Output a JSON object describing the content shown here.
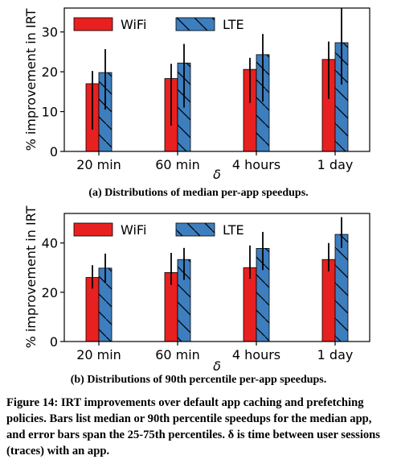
{
  "chart_data": [
    {
      "type": "bar",
      "categories": [
        "20 min",
        "60 min",
        "4 hours",
        "1 day"
      ],
      "xlabel": "δ",
      "ylabel": "% improvement in IRT",
      "ylim": [
        0,
        36
      ],
      "yticks": [
        0,
        10,
        20,
        30
      ],
      "grid": false,
      "legend_position": "top",
      "series": [
        {
          "name": "WiFi",
          "color": "#e8201f",
          "hatch": "none",
          "values": [
            17,
            18.3,
            20.6,
            23.1
          ],
          "error_low": [
            5.5,
            6.5,
            12.2,
            13.2
          ],
          "error_high": [
            20.2,
            22,
            23.5,
            27.6
          ]
        },
        {
          "name": "LTE",
          "color": "#3d7ebe",
          "hatch": "diagonal",
          "values": [
            19.8,
            22.2,
            24.3,
            27.3
          ],
          "error_low": [
            10.5,
            11,
            12.5,
            16.8
          ],
          "error_high": [
            25.7,
            27,
            29.5,
            36
          ]
        }
      ],
      "subcaption": "(a) Distributions of median per-app speedups."
    },
    {
      "type": "bar",
      "categories": [
        "20 min",
        "60 min",
        "4 hours",
        "1 day"
      ],
      "xlabel": "δ",
      "ylabel": "% improvement in IRT",
      "ylim": [
        0,
        52
      ],
      "yticks": [
        0,
        20,
        40
      ],
      "grid": false,
      "legend_position": "top",
      "series": [
        {
          "name": "WiFi",
          "color": "#e8201f",
          "hatch": "none",
          "values": [
            26,
            28,
            30,
            33.3
          ],
          "error_low": [
            21.5,
            23,
            25.5,
            28.5
          ],
          "error_high": [
            31,
            36,
            39,
            40
          ]
        },
        {
          "name": "LTE",
          "color": "#3d7ebe",
          "hatch": "diagonal",
          "values": [
            29.8,
            33.3,
            37.8,
            43.5
          ],
          "error_low": [
            24,
            25,
            29,
            38
          ],
          "error_high": [
            35.7,
            38,
            44.5,
            50.5
          ]
        }
      ],
      "subcaption": "(b) Distributions of 90th percentile per-app speedups."
    }
  ],
  "caption": {
    "label": "Figure 14:",
    "text": "IRT improvements over default app caching and prefetching policies. Bars list median or 90th percentile speedups for the median app, and error bars span the 25-75th percentiles. δ is time between user sessions (traces) with an app."
  }
}
